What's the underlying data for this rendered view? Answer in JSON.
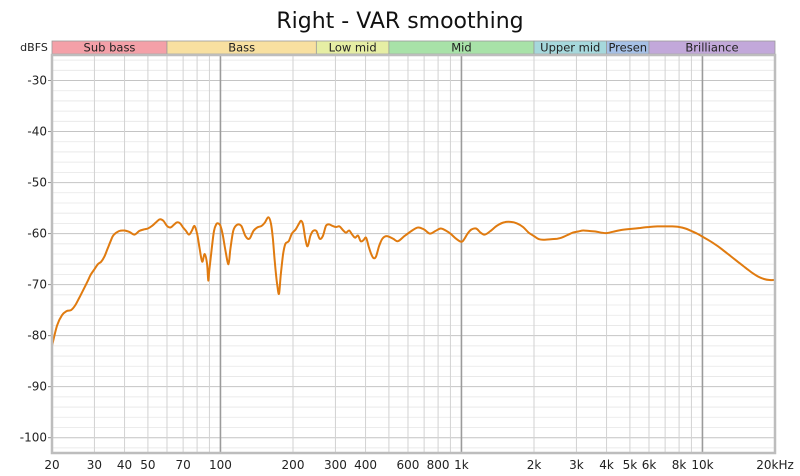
{
  "chart_data": {
    "type": "line",
    "title": "Right - VAR smoothing",
    "ylabel": "dBFS",
    "xlabel": "",
    "x_scale": "log",
    "xlim": [
      20,
      20000
    ],
    "ylim": [
      -103,
      -25
    ],
    "grid": true,
    "x_ticks": [
      {
        "value": 20,
        "label": "20"
      },
      {
        "value": 30,
        "label": "30"
      },
      {
        "value": 40,
        "label": "40"
      },
      {
        "value": 50,
        "label": "50"
      },
      {
        "value": 70,
        "label": "70"
      },
      {
        "value": 100,
        "label": "100"
      },
      {
        "value": 200,
        "label": "200"
      },
      {
        "value": 300,
        "label": "300"
      },
      {
        "value": 400,
        "label": "400"
      },
      {
        "value": 600,
        "label": "600"
      },
      {
        "value": 800,
        "label": "800"
      },
      {
        "value": 1000,
        "label": "1k"
      },
      {
        "value": 2000,
        "label": "2k"
      },
      {
        "value": 3000,
        "label": "3k"
      },
      {
        "value": 4000,
        "label": "4k"
      },
      {
        "value": 5000,
        "label": "5k"
      },
      {
        "value": 6000,
        "label": "6k"
      },
      {
        "value": 8000,
        "label": "8k"
      },
      {
        "value": 10000,
        "label": "10k"
      },
      {
        "value": 20000,
        "label": "20kHz"
      }
    ],
    "y_ticks": [
      {
        "value": -30,
        "label": "-30"
      },
      {
        "value": -40,
        "label": "-40"
      },
      {
        "value": -50,
        "label": "-50"
      },
      {
        "value": -60,
        "label": "-60"
      },
      {
        "value": -70,
        "label": "-70"
      },
      {
        "value": -80,
        "label": "-80"
      },
      {
        "value": -90,
        "label": "-90"
      },
      {
        "value": -100,
        "label": "-100"
      }
    ],
    "bands": [
      {
        "name": "Sub bass",
        "from": 20,
        "to": 60,
        "color": "#f4a0a8"
      },
      {
        "name": "Bass",
        "from": 60,
        "to": 250,
        "color": "#f8e0a0"
      },
      {
        "name": "Low mid",
        "from": 250,
        "to": 500,
        "color": "#e6eea4"
      },
      {
        "name": "Mid",
        "from": 500,
        "to": 2000,
        "color": "#a8e2a8"
      },
      {
        "name": "Upper mid",
        "from": 2000,
        "to": 4000,
        "color": "#a6d8dc"
      },
      {
        "name": "Presen",
        "from": 4000,
        "to": 6000,
        "color": "#a6c0e6"
      },
      {
        "name": "Brilliance",
        "from": 6000,
        "to": 20000,
        "color": "#c2a8da"
      }
    ],
    "series": [
      {
        "color": "#e07b10",
        "points": [
          [
            20,
            -82
          ],
          [
            21,
            -78
          ],
          [
            22,
            -76
          ],
          [
            23,
            -75.2
          ],
          [
            24,
            -75
          ],
          [
            25,
            -74
          ],
          [
            26,
            -72.5
          ],
          [
            27,
            -71
          ],
          [
            28,
            -69.5
          ],
          [
            29,
            -68
          ],
          [
            30,
            -67
          ],
          [
            31,
            -66
          ],
          [
            32,
            -65.5
          ],
          [
            33,
            -64.5
          ],
          [
            34,
            -63
          ],
          [
            35,
            -61.5
          ],
          [
            36,
            -60.3
          ],
          [
            38,
            -59.5
          ],
          [
            40,
            -59.4
          ],
          [
            42,
            -59.7
          ],
          [
            44,
            -60.2
          ],
          [
            46,
            -59.5
          ],
          [
            48,
            -59.2
          ],
          [
            50,
            -59
          ],
          [
            52,
            -58.5
          ],
          [
            54,
            -57.8
          ],
          [
            56,
            -57.2
          ],
          [
            58,
            -57.5
          ],
          [
            60,
            -58.5
          ],
          [
            62,
            -58.8
          ],
          [
            64,
            -58.3
          ],
          [
            66,
            -57.8
          ],
          [
            68,
            -58
          ],
          [
            70,
            -58.8
          ],
          [
            72,
            -59.5
          ],
          [
            74,
            -60.2
          ],
          [
            76,
            -59.5
          ],
          [
            78,
            -58.5
          ],
          [
            80,
            -60
          ],
          [
            82,
            -63
          ],
          [
            84,
            -65.5
          ],
          [
            86,
            -64
          ],
          [
            88,
            -66
          ],
          [
            89,
            -69.2
          ],
          [
            90,
            -67
          ],
          [
            92,
            -63
          ],
          [
            94,
            -59.5
          ],
          [
            96,
            -58.2
          ],
          [
            98,
            -58
          ],
          [
            100,
            -58.5
          ],
          [
            102,
            -60
          ],
          [
            105,
            -63.5
          ],
          [
            108,
            -66
          ],
          [
            110,
            -63
          ],
          [
            113,
            -59.5
          ],
          [
            117,
            -58.3
          ],
          [
            122,
            -58.5
          ],
          [
            127,
            -60.5
          ],
          [
            132,
            -61
          ],
          [
            137,
            -59.5
          ],
          [
            142,
            -58.8
          ],
          [
            148,
            -58.5
          ],
          [
            153,
            -57.8
          ],
          [
            158,
            -56.8
          ],
          [
            162,
            -58
          ],
          [
            165,
            -61
          ],
          [
            168,
            -65.5
          ],
          [
            170,
            -68
          ],
          [
            172,
            -70
          ],
          [
            175,
            -71.8
          ],
          [
            178,
            -68
          ],
          [
            182,
            -64
          ],
          [
            186,
            -62
          ],
          [
            192,
            -61.5
          ],
          [
            198,
            -60
          ],
          [
            205,
            -59.2
          ],
          [
            212,
            -58
          ],
          [
            216,
            -57.5
          ],
          [
            220,
            -58.2
          ],
          [
            225,
            -61
          ],
          [
            230,
            -62.5
          ],
          [
            236,
            -60.5
          ],
          [
            242,
            -59.5
          ],
          [
            250,
            -59.5
          ],
          [
            258,
            -61
          ],
          [
            266,
            -60.5
          ],
          [
            274,
            -58.5
          ],
          [
            282,
            -58.2
          ],
          [
            292,
            -58.5
          ],
          [
            302,
            -58.7
          ],
          [
            312,
            -58.6
          ],
          [
            322,
            -59.3
          ],
          [
            332,
            -59.8
          ],
          [
            342,
            -59.4
          ],
          [
            352,
            -60.2
          ],
          [
            362,
            -60.8
          ],
          [
            372,
            -60.4
          ],
          [
            382,
            -61.5
          ],
          [
            392,
            -61.3
          ],
          [
            402,
            -60.8
          ],
          [
            412,
            -62.5
          ],
          [
            422,
            -64
          ],
          [
            432,
            -64.8
          ],
          [
            442,
            -64.5
          ],
          [
            455,
            -62.5
          ],
          [
            470,
            -61
          ],
          [
            490,
            -60.5
          ],
          [
            520,
            -61
          ],
          [
            545,
            -61.5
          ],
          [
            580,
            -60.5
          ],
          [
            620,
            -59.5
          ],
          [
            660,
            -58.8
          ],
          [
            700,
            -59.2
          ],
          [
            740,
            -60
          ],
          [
            780,
            -59.5
          ],
          [
            820,
            -59
          ],
          [
            860,
            -59.4
          ],
          [
            900,
            -60
          ],
          [
            950,
            -61
          ],
          [
            1000,
            -61.6
          ],
          [
            1030,
            -61
          ],
          [
            1060,
            -60
          ],
          [
            1100,
            -59.2
          ],
          [
            1150,
            -59
          ],
          [
            1200,
            -59.8
          ],
          [
            1250,
            -60.2
          ],
          [
            1320,
            -59.5
          ],
          [
            1400,
            -58.5
          ],
          [
            1500,
            -57.8
          ],
          [
            1600,
            -57.7
          ],
          [
            1700,
            -58
          ],
          [
            1800,
            -58.7
          ],
          [
            1900,
            -59.8
          ],
          [
            2000,
            -60.5
          ],
          [
            2100,
            -61.1
          ],
          [
            2200,
            -61.2
          ],
          [
            2350,
            -61.1
          ],
          [
            2500,
            -61
          ],
          [
            2600,
            -60.8
          ],
          [
            2750,
            -60.3
          ],
          [
            2900,
            -59.8
          ],
          [
            3050,
            -59.6
          ],
          [
            3200,
            -59.4
          ],
          [
            3400,
            -59.5
          ],
          [
            3600,
            -59.6
          ],
          [
            3800,
            -59.8
          ],
          [
            4000,
            -59.9
          ],
          [
            4300,
            -59.6
          ],
          [
            4600,
            -59.3
          ],
          [
            5000,
            -59.1
          ],
          [
            5500,
            -58.9
          ],
          [
            6000,
            -58.7
          ],
          [
            6500,
            -58.6
          ],
          [
            7000,
            -58.6
          ],
          [
            7500,
            -58.6
          ],
          [
            8000,
            -58.7
          ],
          [
            8500,
            -59
          ],
          [
            9000,
            -59.5
          ],
          [
            9500,
            -60
          ],
          [
            10000,
            -60.6
          ],
          [
            10600,
            -61.3
          ],
          [
            11200,
            -62
          ],
          [
            12000,
            -63
          ],
          [
            13000,
            -64.3
          ],
          [
            14000,
            -65.5
          ],
          [
            15000,
            -66.6
          ],
          [
            16000,
            -67.6
          ],
          [
            17000,
            -68.4
          ],
          [
            18000,
            -68.9
          ],
          [
            19000,
            -69.1
          ],
          [
            20000,
            -69.1
          ]
        ]
      }
    ]
  }
}
